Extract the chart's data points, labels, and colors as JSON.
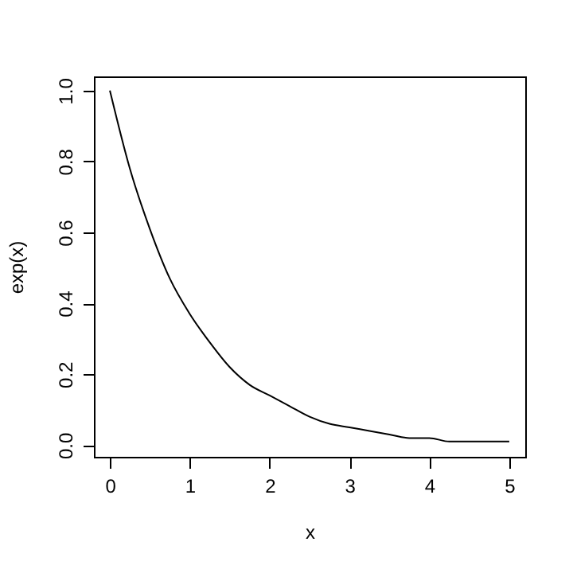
{
  "chart_data": {
    "type": "line",
    "xlabel": "x",
    "ylabel": "exp(x)",
    "x": [
      0,
      0.25,
      0.5,
      0.75,
      1,
      1.25,
      1.5,
      1.75,
      2,
      2.25,
      2.5,
      2.75,
      3,
      3.25,
      3.5,
      3.75,
      4,
      4.25,
      4.5,
      4.75,
      5
    ],
    "series": [
      {
        "color": "#000000",
        "values": [
          1,
          0.78,
          0.61,
          0.47,
          0.37,
          0.29,
          0.22,
          0.17,
          0.14,
          0.11,
          0.08,
          0.06,
          0.05,
          0.04,
          0.03,
          0.02,
          0.02,
          0.01,
          0.01,
          0.01,
          0.01
        ]
      }
    ],
    "xlim": [
      -0.2,
      5.2
    ],
    "ylim": [
      -0.033,
      1.04
    ],
    "xticks": [
      0,
      1,
      2,
      3,
      4,
      5
    ],
    "yticks": [
      {
        "value": 0,
        "label": "0.0"
      },
      0.2,
      0.4,
      0.6,
      0.8,
      {
        "value": 1,
        "label": "1.0"
      }
    ],
    "grid": false,
    "marker": "none",
    "line_style": "solid"
  }
}
